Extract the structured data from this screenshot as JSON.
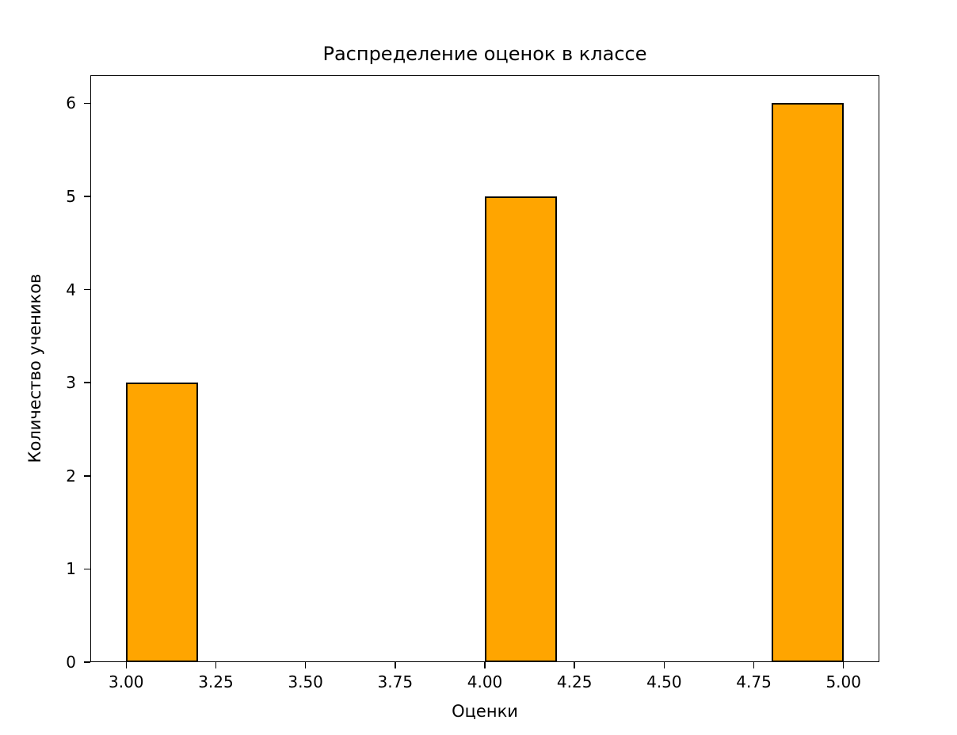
{
  "chart_data": {
    "type": "bar",
    "title": "Распределение оценок в классе",
    "xlabel": "Оценки",
    "ylabel": "Количество учеников",
    "bars": [
      {
        "x_start": 3.0,
        "x_end": 3.2,
        "value": 3
      },
      {
        "x_start": 4.0,
        "x_end": 4.2,
        "value": 5
      },
      {
        "x_start": 4.8,
        "x_end": 5.0,
        "value": 6
      }
    ],
    "x_ticks": [
      "3.00",
      "3.25",
      "3.50",
      "3.75",
      "4.00",
      "4.25",
      "4.50",
      "4.75",
      "5.00"
    ],
    "x_tick_values": [
      3.0,
      3.25,
      3.5,
      3.75,
      4.0,
      4.25,
      4.5,
      4.75,
      5.0
    ],
    "y_ticks": [
      "0",
      "1",
      "2",
      "3",
      "4",
      "5",
      "6"
    ],
    "y_tick_values": [
      0,
      1,
      2,
      3,
      4,
      5,
      6
    ],
    "xlim": [
      2.9,
      5.1
    ],
    "ylim": [
      0,
      6.3
    ],
    "bar_color": "#FFA500",
    "bar_edge_color": "#000000",
    "grid": false,
    "legend_position": "none"
  }
}
